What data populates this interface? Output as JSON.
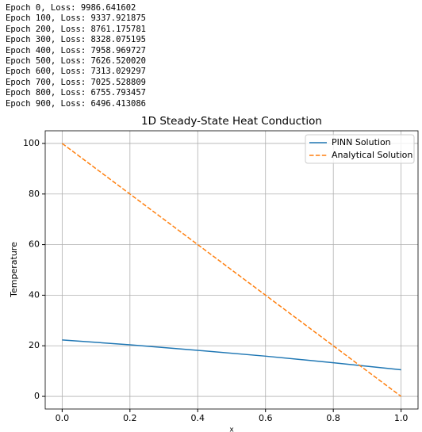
{
  "log_lines": [
    "Epoch 0, Loss: 9986.641602",
    "Epoch 100, Loss: 9337.921875",
    "Epoch 200, Loss: 8761.175781",
    "Epoch 300, Loss: 8328.075195",
    "Epoch 400, Loss: 7958.969727",
    "Epoch 500, Loss: 7626.520020",
    "Epoch 600, Loss: 7313.029297",
    "Epoch 700, Loss: 7025.528809",
    "Epoch 800, Loss: 6755.793457",
    "Epoch 900, Loss: 6496.413086"
  ],
  "chart_data": {
    "type": "line",
    "title": "1D Steady-State Heat Conduction",
    "x_label": "x",
    "y_label": "Temperature",
    "x": [
      0,
      0.2,
      0.4,
      0.6,
      0.8,
      1.0
    ],
    "series": [
      {
        "name": "PINN Solution",
        "color": "#1f77b4",
        "dash": "solid",
        "values": [
          22.3,
          20.4,
          18.2,
          15.9,
          13.3,
          10.5
        ]
      },
      {
        "name": "Analytical Solution",
        "color": "#ff7f0e",
        "dash": "dashed",
        "values": [
          100,
          80,
          60,
          40,
          20,
          0
        ]
      }
    ],
    "xlim": [
      -0.05,
      1.05
    ],
    "xticks": [
      {
        "value": 0,
        "label": "0.0"
      },
      0.2,
      0.4,
      0.6,
      0.8,
      {
        "value": 1.0,
        "label": "1.0"
      }
    ],
    "ylim": [
      -5,
      105
    ],
    "yticks": [
      0,
      20,
      40,
      60,
      80,
      100
    ],
    "grid": true,
    "legend": "upper right"
  }
}
